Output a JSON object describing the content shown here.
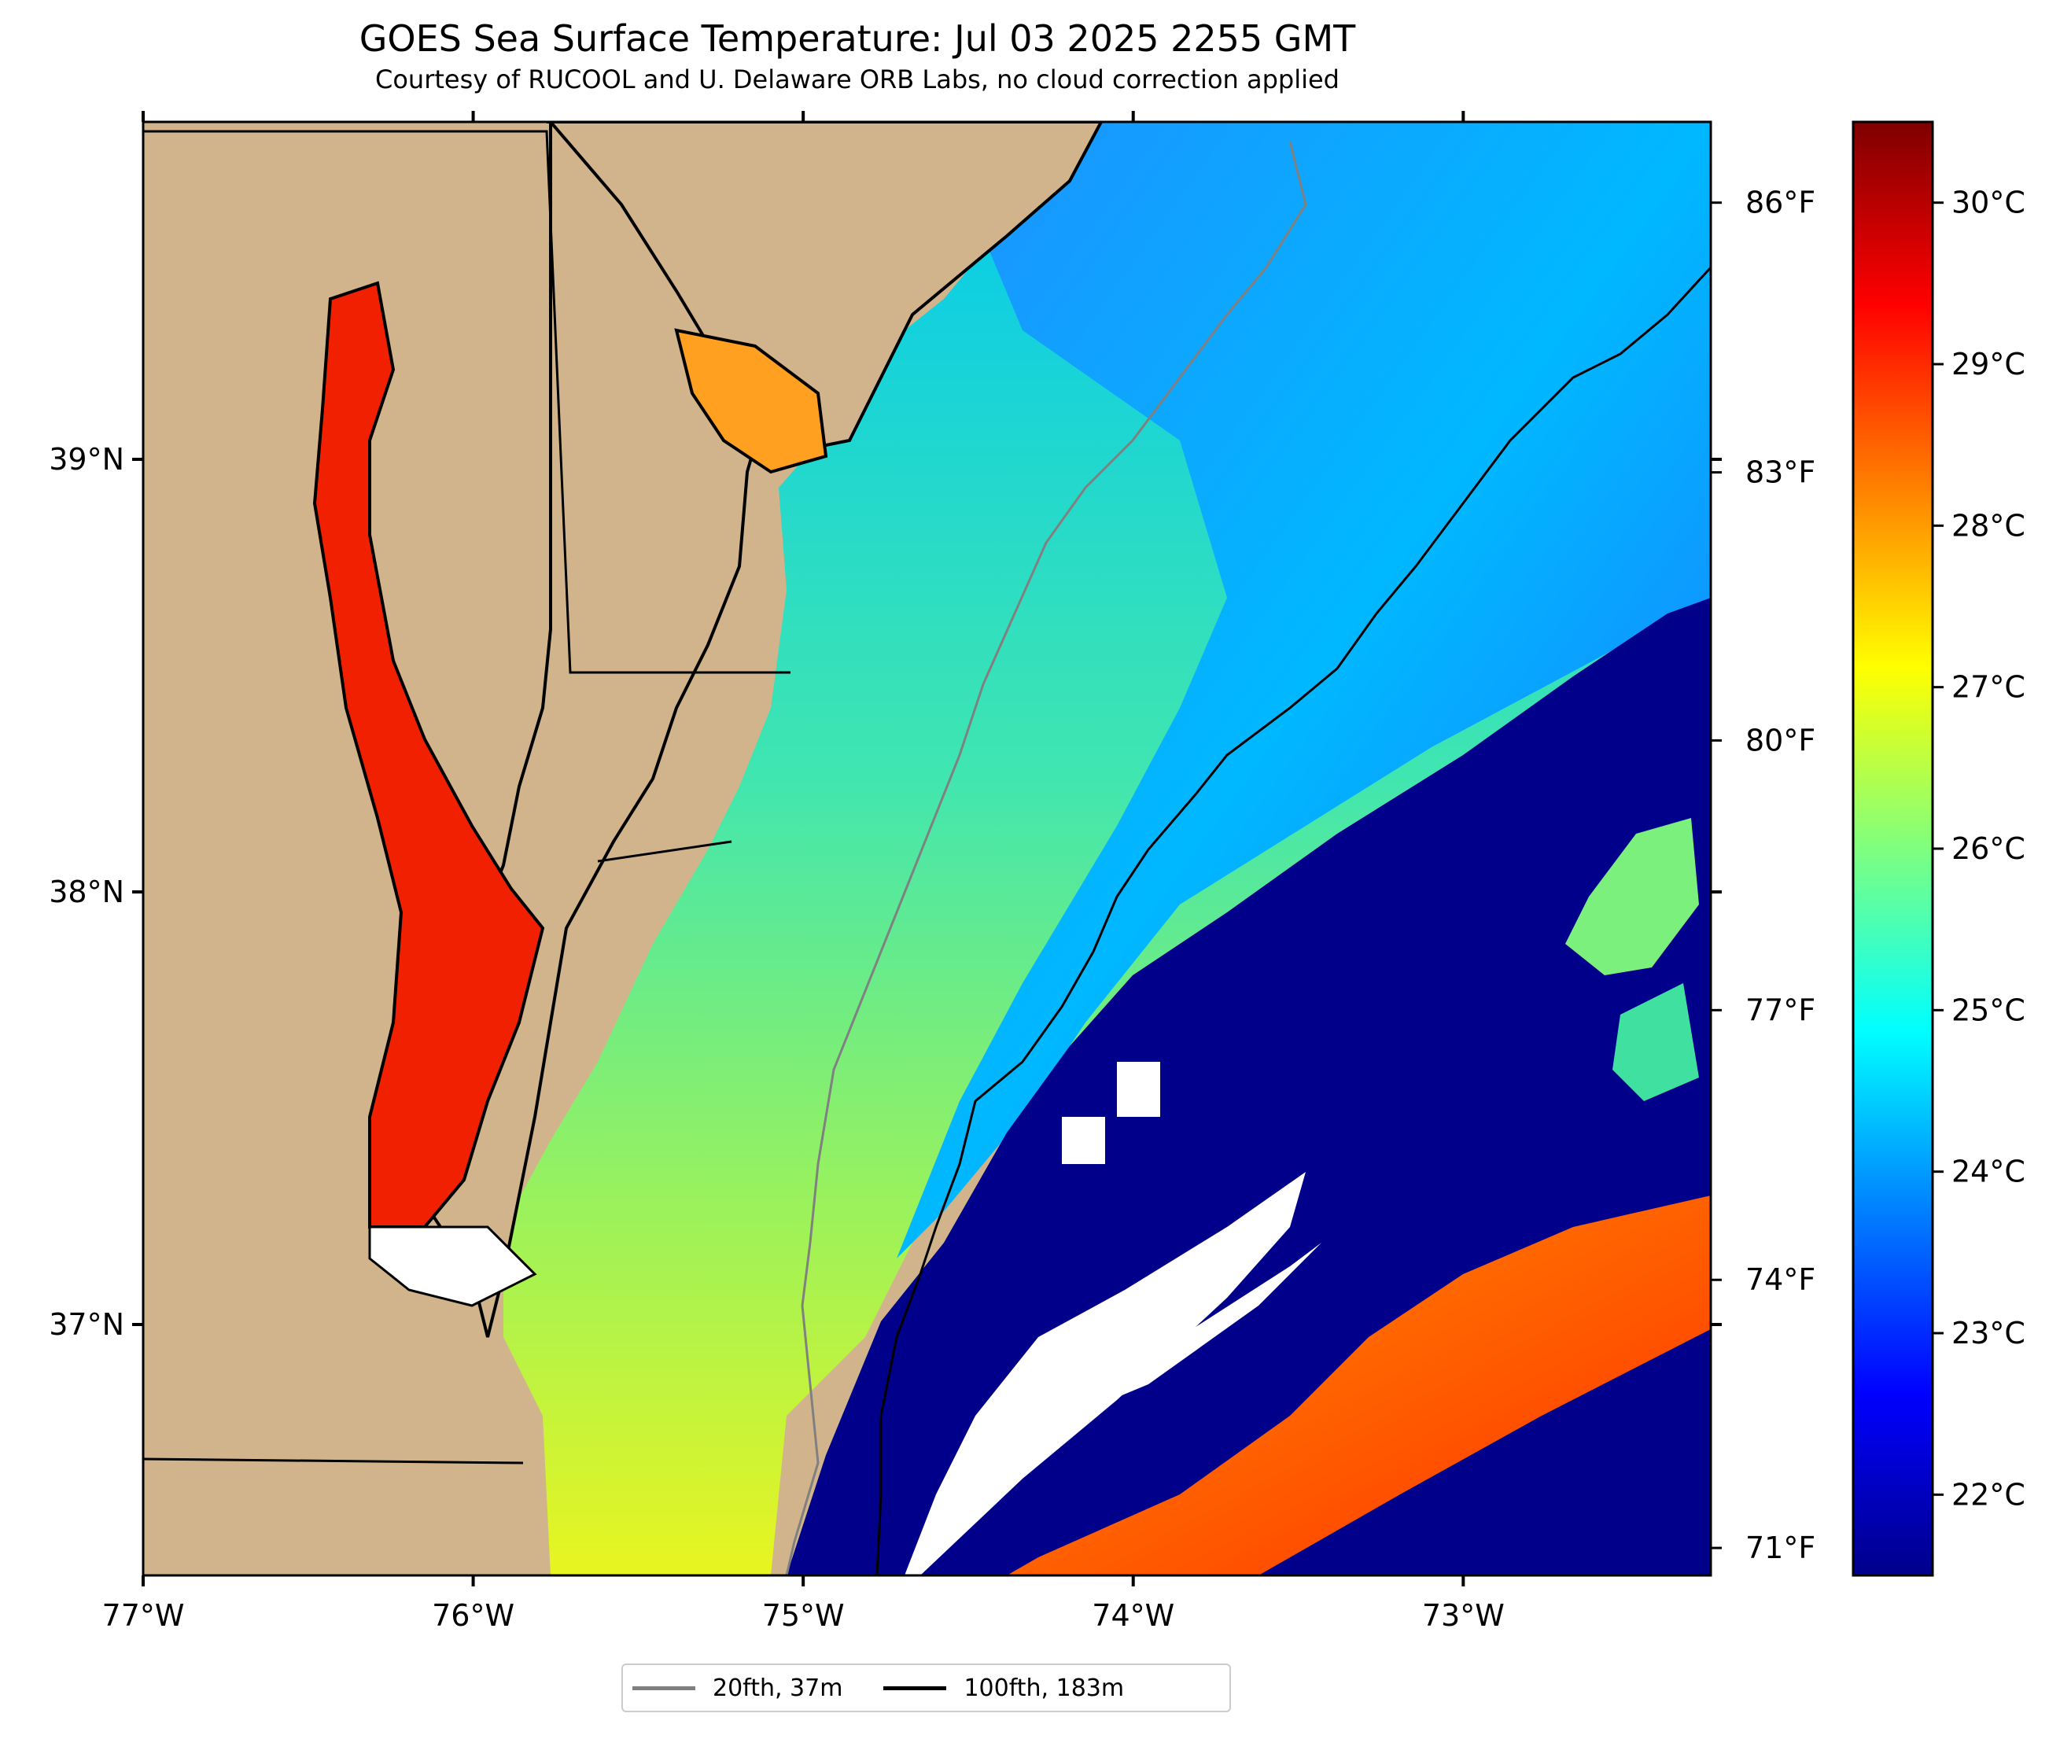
{
  "title": "GOES Sea Surface Temperature: Jul 03 2025 2255 GMT",
  "subtitle": "Courtesy of RUCOOL and U. Delaware ORB Labs, no cloud correction applied",
  "map": {
    "lon_range": [
      -77.0,
      -72.25
    ],
    "lat_range": [
      36.42,
      39.78
    ],
    "lon_ticks": [
      {
        "value": -77,
        "label": "77°W"
      },
      {
        "value": -76,
        "label": "76°W"
      },
      {
        "value": -75,
        "label": "75°W"
      },
      {
        "value": -74,
        "label": "74°W"
      },
      {
        "value": -73,
        "label": "73°W"
      }
    ],
    "lat_ticks": [
      {
        "value": 39,
        "label": "39°N"
      },
      {
        "value": 38,
        "label": "38°N"
      },
      {
        "value": 37,
        "label": "37°N"
      }
    ],
    "land_color": "#d2b48c",
    "cloud_color": "#ffffff"
  },
  "fahrenheit_ticks": [
    {
      "value_c": 30.0,
      "label": "86°F"
    },
    {
      "value_c": 28.33,
      "label": "83°F"
    },
    {
      "value_c": 26.67,
      "label": "80°F"
    },
    {
      "value_c": 25.0,
      "label": "77°F"
    },
    {
      "value_c": 23.33,
      "label": "74°F"
    },
    {
      "value_c": 21.67,
      "label": "71°F"
    }
  ],
  "colorbar": {
    "range_c": [
      21.5,
      30.5
    ],
    "ticks": [
      {
        "value": 30,
        "label": "30°C"
      },
      {
        "value": 29,
        "label": "29°C"
      },
      {
        "value": 28,
        "label": "28°C"
      },
      {
        "value": 27,
        "label": "27°C"
      },
      {
        "value": 26,
        "label": "26°C"
      },
      {
        "value": 25,
        "label": "25°C"
      },
      {
        "value": 24,
        "label": "24°C"
      },
      {
        "value": 23,
        "label": "23°C"
      },
      {
        "value": 22,
        "label": "22°C"
      }
    ],
    "colors": [
      "#00008b",
      "#0000ff",
      "#007fff",
      "#00ffff",
      "#7fff7f",
      "#ffff00",
      "#ff7f00",
      "#ff0000",
      "#7f0000"
    ]
  },
  "legend": [
    {
      "label": "20fth, 37m",
      "color": "#808080"
    },
    {
      "label": "100fth, 183m",
      "color": "#000000"
    }
  ]
}
